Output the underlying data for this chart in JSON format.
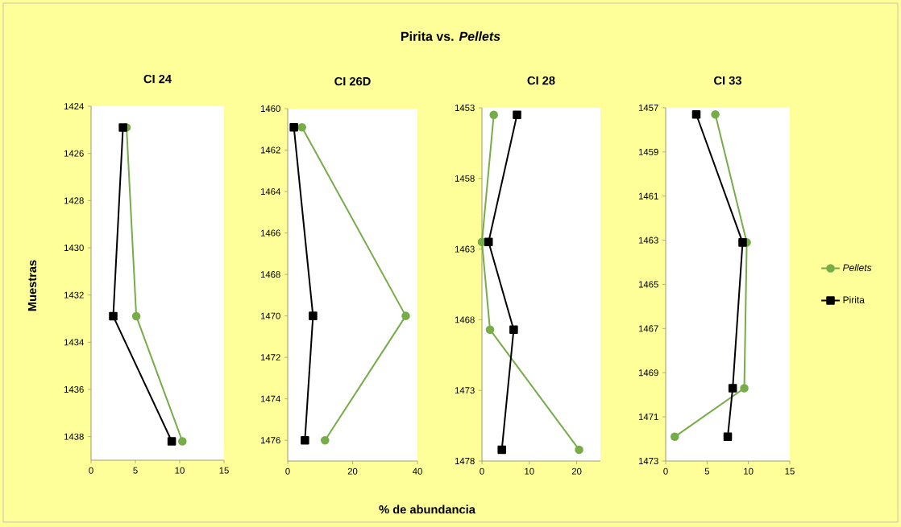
{
  "chart_data": [
    {
      "type": "line",
      "title": "CI 24",
      "annotations": [
        "Pirita vs. *Pellets*"
      ],
      "ylabel": "Muestras",
      "orientation": "horizontal",
      "xlim": [
        0,
        15
      ],
      "xticks": [
        0,
        5,
        10,
        15
      ],
      "ylim": [
        1439,
        1424
      ],
      "yticks": [
        1424,
        1426,
        1428,
        1430,
        1432,
        1434,
        1436,
        1438
      ],
      "series": [
        {
          "color": "#77ac48",
          "marker": "circle",
          "x": [
            1424.9,
            1432.9,
            1438.2
          ],
          "values": [
            4.0,
            5.1,
            10.3
          ]
        },
        {
          "color": "#000000",
          "marker": "square",
          "x": [
            1424.9,
            1432.9,
            1438.2
          ],
          "values": [
            3.6,
            2.5,
            9.1
          ]
        }
      ]
    },
    {
      "type": "line",
      "title": "CI 26D",
      "xlabel": "% de abundancia",
      "orientation": "horizontal",
      "xlim": [
        0,
        40
      ],
      "xticks": [
        0,
        20,
        40
      ],
      "ylim": [
        1477,
        1460
      ],
      "yticks": [
        1460,
        1462,
        1464,
        1466,
        1468,
        1470,
        1472,
        1474,
        1476
      ],
      "series": [
        {
          "color": "#77ac48",
          "marker": "circle",
          "x": [
            1460.9,
            1470,
            1476
          ],
          "values": [
            4.4,
            36.4,
            11.5
          ]
        },
        {
          "color": "#000000",
          "marker": "square",
          "x": [
            1460.9,
            1470,
            1476
          ],
          "values": [
            1.9,
            7.8,
            5.3
          ]
        }
      ]
    },
    {
      "type": "line",
      "title": "CI 28",
      "orientation": "horizontal",
      "xlim": [
        0,
        25
      ],
      "xticks": [
        0,
        10,
        20
      ],
      "ylim": [
        1478,
        1453
      ],
      "yticks": [
        1453,
        1458,
        1463,
        1468,
        1473,
        1478
      ],
      "series": [
        {
          "color": "#77ac48",
          "marker": "circle",
          "x": [
            1453.5,
            1462.5,
            1468.7,
            1477.2
          ],
          "values": [
            2.5,
            0,
            1.7,
            20.5
          ]
        },
        {
          "color": "#000000",
          "marker": "square",
          "x": [
            1453.5,
            1462.5,
            1468.7,
            1477.2
          ],
          "values": [
            7.4,
            1.4,
            6.7,
            4.2
          ]
        }
      ]
    },
    {
      "type": "line",
      "title": "CI 33",
      "orientation": "horizontal",
      "legend": "right",
      "xlim": [
        0,
        15
      ],
      "xticks": [
        0,
        5,
        10,
        15
      ],
      "ylim": [
        1473,
        1457
      ],
      "yticks": [
        1457,
        1459,
        1461,
        1463,
        1465,
        1467,
        1469,
        1471,
        1473
      ],
      "series": [
        {
          "name": "*Pellets*",
          "color": "#77ac48",
          "marker": "circle",
          "x": [
            1457.3,
            1463.1,
            1469.7,
            1471.9
          ],
          "values": [
            6.0,
            9.8,
            9.5,
            1.1
          ]
        },
        {
          "name": "Pirita",
          "color": "#000000",
          "marker": "square",
          "x": [
            1457.3,
            1463.1,
            1469.7,
            1471.9
          ],
          "values": [
            3.7,
            9.3,
            8.1,
            7.5
          ]
        }
      ]
    }
  ]
}
